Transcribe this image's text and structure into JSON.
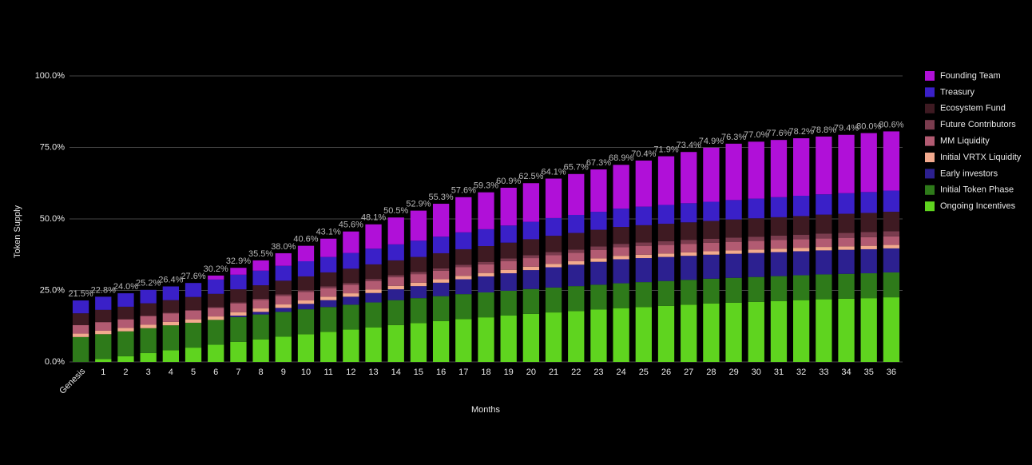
{
  "chart_data": {
    "type": "stacked_bar",
    "x_label": "Months",
    "y_label": "Token Supply",
    "categories": [
      "Genesis",
      "1",
      "2",
      "3",
      "4",
      "5",
      "6",
      "7",
      "8",
      "9",
      "10",
      "11",
      "12",
      "13",
      "14",
      "15",
      "16",
      "17",
      "18",
      "19",
      "20",
      "21",
      "22",
      "23",
      "24",
      "25",
      "26",
      "27",
      "28",
      "29",
      "30",
      "31",
      "32",
      "33",
      "34",
      "35",
      "36"
    ],
    "total_labels": [
      "21.5%",
      "22.8%",
      "24.0%",
      "25.2%",
      "26.4%",
      "27.6%",
      "30.2%",
      "32.9%",
      "35.5%",
      "38.0%",
      "40.6%",
      "43.1%",
      "45.6%",
      "48.1%",
      "50.5%",
      "52.9%",
      "55.3%",
      "57.6%",
      "59.3%",
      "60.9%",
      "62.5%",
      "64.1%",
      "65.7%",
      "67.3%",
      "68.9%",
      "70.4%",
      "71.9%",
      "73.4%",
      "74.9%",
      "76.3%",
      "77.0%",
      "77.6%",
      "78.2%",
      "78.8%",
      "79.4%",
      "80.0%",
      "80.6%"
    ],
    "series": [
      {
        "name": "Founding Team",
        "color": "#b010d8",
        "values": [
          0,
          0,
          0,
          0,
          0,
          0,
          1.4,
          2.4,
          3.6,
          4.4,
          5.4,
          6.4,
          7.5,
          8.5,
          9.4,
          10.5,
          11.5,
          12.3,
          12.9,
          13.2,
          13.5,
          13.8,
          14.3,
          14.8,
          15.3,
          16.1,
          17.0,
          17.9,
          18.9,
          19.7,
          19.9,
          20.0,
          20.1,
          20.2,
          20.4,
          20.6,
          20.7
        ]
      },
      {
        "name": "Treasury",
        "color": "#3a20c8",
        "values": [
          4.5,
          4.6,
          4.7,
          4.7,
          4.8,
          4.9,
          5.0,
          5.1,
          5.1,
          5.2,
          5.3,
          5.4,
          5.5,
          5.5,
          5.6,
          5.7,
          5.8,
          5.9,
          5.9,
          6.0,
          6.1,
          6.2,
          6.3,
          6.3,
          6.4,
          6.5,
          6.6,
          6.7,
          6.7,
          6.8,
          6.9,
          7.0,
          7.1,
          7.1,
          7.2,
          7.3,
          7.4
        ]
      },
      {
        "name": "Ecosystem Fund",
        "color": "#3e1a22",
        "values": [
          4.1,
          4.2,
          4.3,
          4.3,
          4.4,
          4.5,
          4.6,
          4.6,
          4.7,
          4.8,
          4.9,
          4.9,
          5.0,
          5.1,
          5.2,
          5.2,
          5.3,
          5.4,
          5.5,
          5.5,
          5.6,
          5.7,
          5.8,
          5.8,
          5.9,
          6.0,
          6.1,
          6.1,
          6.2,
          6.3,
          6.4,
          6.4,
          6.5,
          6.6,
          6.7,
          6.7,
          6.8
        ]
      },
      {
        "name": "Future Contributors",
        "color": "#7a3c4e",
        "values": [
          0,
          0.1,
          0.1,
          0.2,
          0.2,
          0.3,
          0.3,
          0.4,
          0.4,
          0.5,
          0.5,
          0.6,
          0.6,
          0.7,
          0.7,
          0.8,
          0.8,
          0.9,
          0.9,
          1.0,
          1.0,
          1.1,
          1.1,
          1.2,
          1.2,
          1.3,
          1.3,
          1.4,
          1.4,
          1.5,
          1.5,
          1.6,
          1.6,
          1.7,
          1.7,
          1.8,
          1.8
        ]
      },
      {
        "name": "MM Liquidity",
        "color": "#b25b72",
        "values": [
          3.0,
          3.0,
          3.0,
          3.0,
          3.0,
          3.0,
          3.0,
          3.0,
          3.0,
          3.0,
          3.0,
          3.0,
          3.0,
          3.0,
          3.0,
          3.0,
          3.0,
          3.0,
          3.0,
          3.0,
          3.0,
          3.0,
          3.0,
          3.0,
          3.0,
          3.0,
          3.0,
          3.0,
          3.0,
          3.0,
          3.0,
          3.0,
          3.0,
          3.0,
          3.0,
          3.0,
          3.0
        ]
      },
      {
        "name": "Initial VRTX Liquidity",
        "color": "#f2aa8e",
        "values": [
          1.2,
          1.2,
          1.2,
          1.2,
          1.2,
          1.2,
          1.2,
          1.2,
          1.2,
          1.2,
          1.2,
          1.2,
          1.2,
          1.2,
          1.2,
          1.2,
          1.2,
          1.2,
          1.2,
          1.2,
          1.2,
          1.2,
          1.2,
          1.2,
          1.2,
          1.2,
          1.2,
          1.2,
          1.2,
          1.2,
          1.2,
          1.2,
          1.2,
          1.2,
          1.2,
          1.2,
          1.2
        ]
      },
      {
        "name": "Early investors",
        "color": "#2c2090",
        "values": [
          0,
          0,
          0,
          0,
          0,
          0,
          0,
          0.5,
          0.9,
          1.4,
          1.9,
          2.4,
          2.8,
          3.3,
          3.8,
          4.2,
          4.7,
          5.2,
          5.6,
          6.1,
          6.6,
          7.1,
          7.5,
          8.0,
          8.4,
          8.4,
          8.4,
          8.4,
          8.4,
          8.4,
          8.4,
          8.4,
          8.4,
          8.4,
          8.4,
          8.4,
          8.4
        ]
      },
      {
        "name": "Initial Token Phase",
        "color": "#2e7a1a",
        "values": [
          8.7,
          8.7,
          8.7,
          8.7,
          8.7,
          8.7,
          8.7,
          8.7,
          8.7,
          8.7,
          8.7,
          8.7,
          8.7,
          8.7,
          8.7,
          8.7,
          8.7,
          8.7,
          8.7,
          8.7,
          8.7,
          8.7,
          8.7,
          8.7,
          8.7,
          8.7,
          8.7,
          8.7,
          8.7,
          8.7,
          8.7,
          8.7,
          8.7,
          8.7,
          8.7,
          8.7,
          8.7
        ]
      },
      {
        "name": "Ongoing Incentives",
        "color": "#5fd41f",
        "values": [
          0,
          1.0,
          2.0,
          3.1,
          4.1,
          5.0,
          6.0,
          7.0,
          7.9,
          8.8,
          9.7,
          10.5,
          11.3,
          12.1,
          12.9,
          13.6,
          14.3,
          15.0,
          15.6,
          16.2,
          16.8,
          17.3,
          17.8,
          18.3,
          18.8,
          19.2,
          19.6,
          20.0,
          20.4,
          20.7,
          21.0,
          21.3,
          21.6,
          21.9,
          22.1,
          22.3,
          22.6
        ]
      }
    ],
    "ylim": [
      0,
      100
    ],
    "yticks": [
      {
        "value": 0,
        "label": "0.0%"
      },
      {
        "value": 25,
        "label": "25.0%"
      },
      {
        "value": 50,
        "label": "50.0%"
      },
      {
        "value": 75,
        "label": "75.0%"
      },
      {
        "value": 100,
        "label": "100.0%"
      }
    ],
    "grid": true,
    "legend": "right"
  }
}
